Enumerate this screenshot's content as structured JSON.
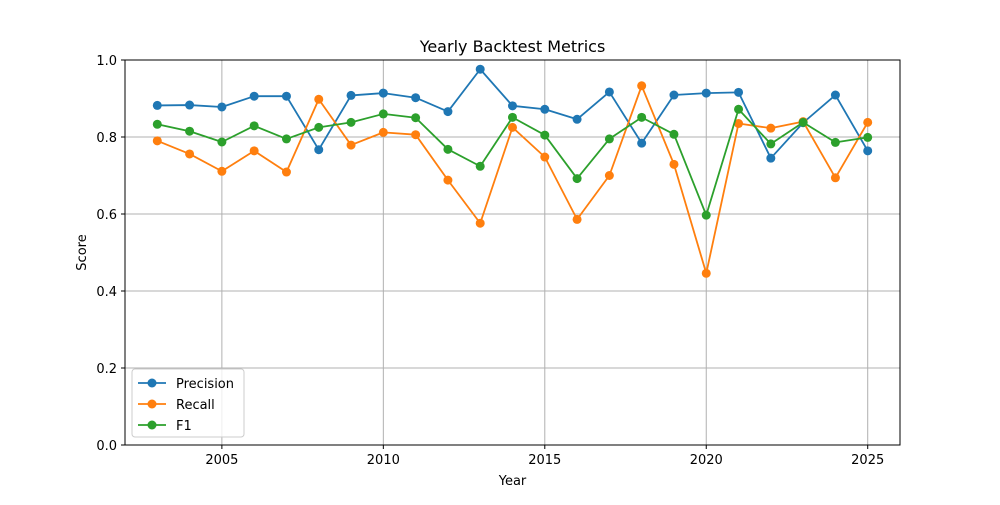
{
  "chart_data": {
    "type": "line",
    "title": "Yearly Backtest Metrics",
    "xlabel": "Year",
    "ylabel": "Score",
    "xlim": [
      2002,
      2026
    ],
    "ylim": [
      0.0,
      1.0
    ],
    "grid": true,
    "legend_position": "lower-left",
    "x": [
      2003,
      2004,
      2005,
      2006,
      2007,
      2008,
      2009,
      2010,
      2011,
      2012,
      2013,
      2014,
      2015,
      2016,
      2017,
      2018,
      2019,
      2020,
      2021,
      2022,
      2023,
      2024,
      2025
    ],
    "x_ticks": [
      2005,
      2010,
      2015,
      2020,
      2025
    ],
    "x_tick_labels": [
      "2005",
      "2010",
      "2015",
      "2020",
      "2025"
    ],
    "y_ticks": [
      0.0,
      0.2,
      0.4,
      0.6,
      0.8,
      1.0
    ],
    "y_tick_labels": [
      "0.0",
      "0.2",
      "0.4",
      "0.6",
      "0.8",
      "1.0"
    ],
    "series": [
      {
        "name": "Precision",
        "color": "#1f77b4",
        "values": [
          0.882,
          0.883,
          0.878,
          0.906,
          0.906,
          0.767,
          0.908,
          0.914,
          0.902,
          0.866,
          0.976,
          0.881,
          0.872,
          0.846,
          0.917,
          0.784,
          0.909,
          0.914,
          0.916,
          0.745,
          0.837,
          0.909,
          0.764
        ]
      },
      {
        "name": "Recall",
        "color": "#ff7f0e",
        "values": [
          0.79,
          0.756,
          0.711,
          0.764,
          0.709,
          0.898,
          0.779,
          0.812,
          0.806,
          0.688,
          0.576,
          0.825,
          0.748,
          0.586,
          0.7,
          0.933,
          0.729,
          0.446,
          0.835,
          0.823,
          0.84,
          0.694,
          0.838
        ]
      },
      {
        "name": "F1",
        "color": "#2ca02c",
        "values": [
          0.833,
          0.815,
          0.787,
          0.829,
          0.795,
          0.825,
          0.838,
          0.86,
          0.85,
          0.768,
          0.724,
          0.851,
          0.805,
          0.692,
          0.795,
          0.851,
          0.807,
          0.597,
          0.872,
          0.782,
          0.838,
          0.786,
          0.799
        ]
      }
    ]
  }
}
